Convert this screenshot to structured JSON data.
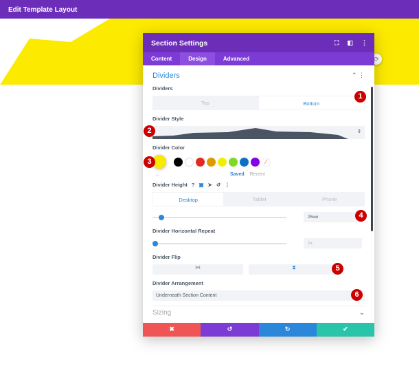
{
  "topbar": {
    "title": "Edit Template Layout"
  },
  "colors": {
    "purple": "#6c2eb9",
    "yellow": "#fcea00",
    "accent": "#2b87da"
  },
  "modal": {
    "title": "Section Settings",
    "icons": [
      "fullscreen-icon",
      "split-view-icon",
      "more-icon"
    ],
    "tabs": [
      {
        "label": "Content"
      },
      {
        "label": "Design"
      },
      {
        "label": "Advanced"
      }
    ],
    "section": "Dividers",
    "dividers": {
      "label": "Dividers",
      "options": [
        "Top",
        "Bottom"
      ],
      "selected": "Bottom"
    },
    "style": {
      "label": "Divider Style"
    },
    "color": {
      "label": "Divider Color",
      "selected": "#f7e900",
      "swatches": [
        "#000000",
        "#ffffff",
        "#e02b20",
        "#e09900",
        "#edf000",
        "#7cda24",
        "#0c71c3",
        "#8300e9"
      ],
      "saved": "Saved",
      "recent": "Recent",
      "more": "..."
    },
    "height": {
      "label": "Divider Height",
      "devices": [
        "Desktop",
        "Tablet",
        "Phone"
      ],
      "value": "25vw",
      "slider_percent": 5
    },
    "repeat": {
      "label": "Divider Horizontal Repeat",
      "value": "1x",
      "slider_percent": 0
    },
    "flip": {
      "label": "Divider Flip",
      "h": "⧓",
      "v": "⧗"
    },
    "arrangement": {
      "label": "Divider Arrangement",
      "value": "Underneath Section Content"
    },
    "next_section": "Sizing",
    "footer": {
      "cancel": "✖",
      "undo": "↺",
      "redo": "↻",
      "save": "✔"
    }
  },
  "badges": [
    "1",
    "2",
    "3",
    "4",
    "5",
    "6"
  ]
}
